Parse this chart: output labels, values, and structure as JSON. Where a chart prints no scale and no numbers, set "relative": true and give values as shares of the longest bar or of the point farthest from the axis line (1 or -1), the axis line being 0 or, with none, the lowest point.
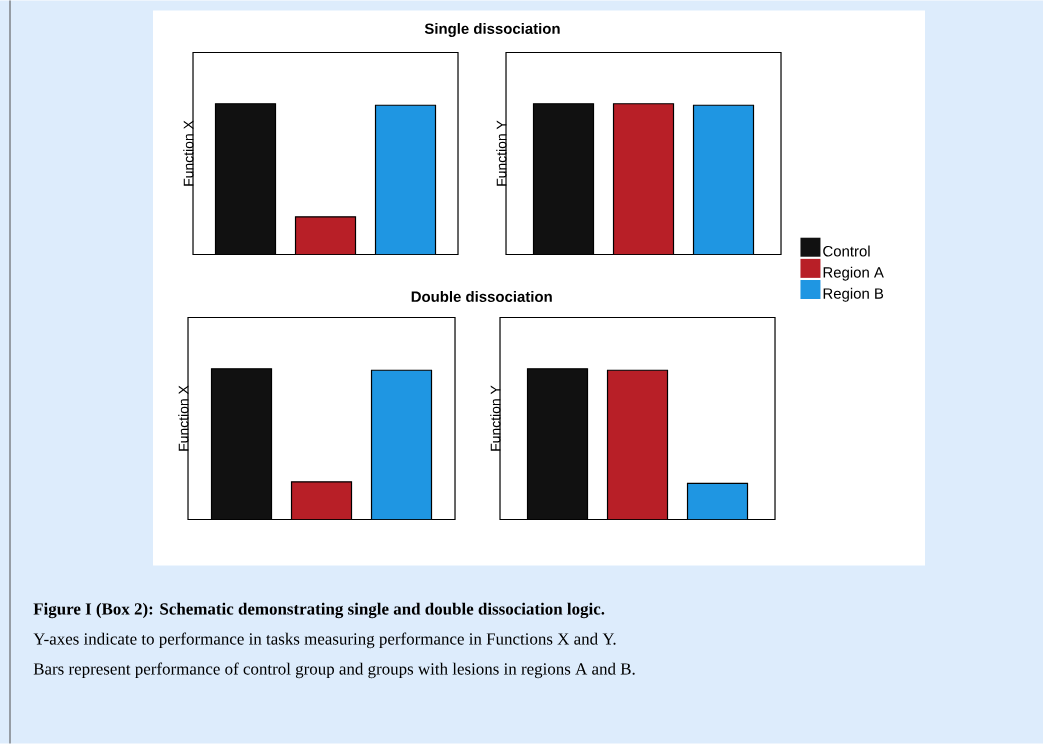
{
  "chart_data": [
    {
      "type": "bar",
      "title": "Single dissociation",
      "ylabel": "Function X",
      "relative": true,
      "categories": [
        null
      ],
      "series": [
        {
          "color": "#111111",
          "values": [
            1
          ]
        },
        {
          "color": "#b81f27",
          "values": [
            0.25
          ]
        },
        {
          "color": "#1f96e2",
          "values": [
            0.99
          ]
        }
      ]
    },
    {
      "type": "bar",
      "ylabel": "Function Y",
      "relative": true,
      "legend": "right",
      "categories": [
        null
      ],
      "series": [
        {
          "name": "Control",
          "color": "#111111",
          "values": [
            1
          ]
        },
        {
          "name": "Region A",
          "color": "#b81f27",
          "values": [
            1
          ]
        },
        {
          "name": "Region B",
          "color": "#1f96e2",
          "values": [
            0.99
          ]
        }
      ]
    },
    {
      "type": "bar",
      "title": "Double dissociation",
      "ylabel": "Function X",
      "relative": true,
      "categories": [
        null
      ],
      "series": [
        {
          "color": "#111111",
          "values": [
            1
          ]
        },
        {
          "color": "#b81f27",
          "values": [
            0.25
          ]
        },
        {
          "color": "#1f96e2",
          "values": [
            0.99
          ]
        }
      ]
    },
    {
      "type": "bar",
      "ylabel": "Function Y",
      "relative": true,
      "categories": [
        null
      ],
      "series": [
        {
          "color": "#111111",
          "values": [
            1
          ]
        },
        {
          "color": "#b81f27",
          "values": [
            0.99
          ]
        },
        {
          "color": "#1f96e2",
          "values": [
            0.24
          ]
        }
      ],
      "annotations": [
        "Figure I (Box 2): Schematic demonstrating single and double dissociation logic.",
        "Y-axes indicate to performance in tasks measuring performance in Functions X and Y.",
        "Bars represent performance of control group and groups with lesions in regions A and B."
      ]
    }
  ]
}
